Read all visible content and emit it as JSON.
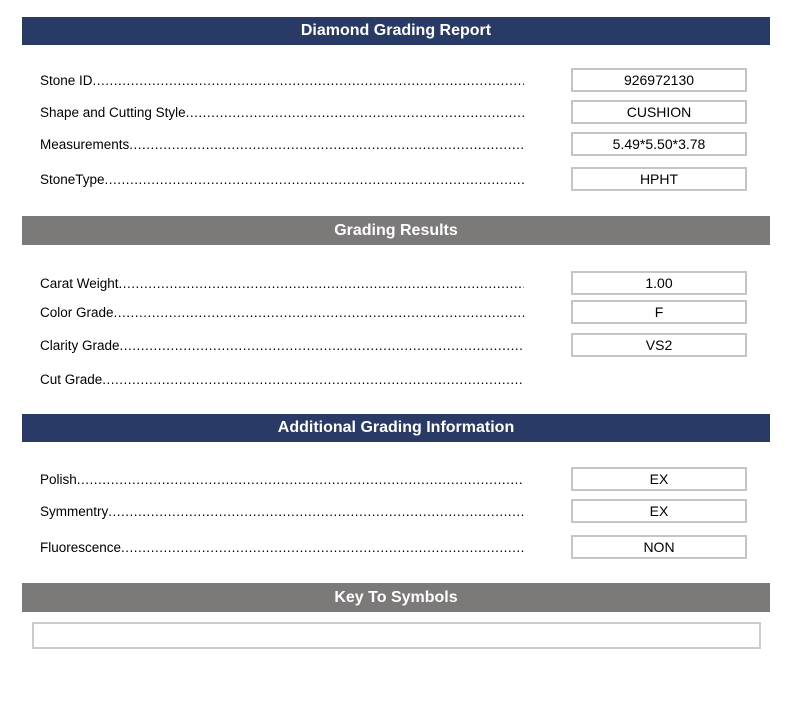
{
  "ui": {
    "dot_leader": "............................................................................................................................................................................................",
    "colors": {
      "header_navy": "#2A3A67",
      "header_gray": "#7C7979",
      "box_border": "#C6C4C4",
      "key_box_border": "#CCCCCC"
    }
  },
  "sections": [
    {
      "heading": "Diamond Grading Report",
      "rows": [
        {
          "label": "Stone ID",
          "value": "926972130"
        },
        {
          "label": "Shape and Cutting Style",
          "value": "CUSHION"
        },
        {
          "label": "Measurements",
          "value": "5.49*5.50*3.78"
        },
        {
          "label": "StoneType",
          "value": "HPHT"
        }
      ]
    },
    {
      "heading": "Grading Results",
      "rows": [
        {
          "label": "Carat Weight",
          "value": "1.00"
        },
        {
          "label": "Color Grade",
          "value": "F"
        },
        {
          "label": "Clarity Grade",
          "value": "VS2"
        },
        {
          "label": "Cut Grade",
          "value": ""
        }
      ]
    },
    {
      "heading": "Additional Grading Information",
      "rows": [
        {
          "label": "Polish",
          "value": "EX"
        },
        {
          "label": "Symmentry",
          "value": "EX"
        },
        {
          "label": "Fluorescence",
          "value": "NON"
        }
      ]
    },
    {
      "heading": "Key To Symbols",
      "rows": [],
      "key_box_value": ""
    }
  ]
}
